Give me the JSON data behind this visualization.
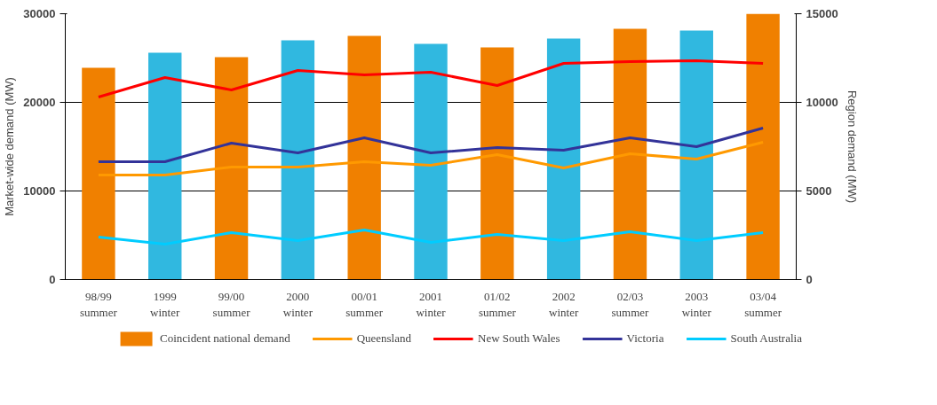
{
  "chart_data": {
    "type": "bar",
    "categories": [
      "98/99\nsummer",
      "1999\nwinter",
      "99/00\nsummer",
      "2000\nwinter",
      "00/01\nsummer",
      "2001\nwinter",
      "01/02\nsummer",
      "2002\nwinter",
      "02/03\nsummer",
      "2003\nwinter",
      "03/04\nsummer"
    ],
    "ylabel": "Market-wide demand (MW)",
    "y2label": "Region demand (MW)",
    "ylim": [
      0,
      30000
    ],
    "yticks": [
      0,
      10000,
      20000,
      30000
    ],
    "y2lim": [
      0,
      15000
    ],
    "y2ticks": [
      0,
      5000,
      10000,
      15000
    ],
    "grid": "y",
    "legend": "bottom",
    "series": [
      {
        "name": "Coincident national demand",
        "color": "#f08000",
        "colors": [
          "#f08000",
          "#30b8e0",
          "#f08000",
          "#30b8e0",
          "#f08000",
          "#30b8e0",
          "#f08000",
          "#30b8e0",
          "#f08000",
          "#30b8e0",
          "#f08000"
        ],
        "values": [
          23900,
          25600,
          25100,
          27000,
          27500,
          26600,
          26200,
          27200,
          28300,
          28100,
          30000
        ]
      },
      {
        "name": "Queensland",
        "type": "line",
        "axis": "y2",
        "color": "#ff9900",
        "values": [
          5900,
          5900,
          6350,
          6350,
          6650,
          6450,
          7050,
          6300,
          7100,
          6800,
          7750
        ]
      },
      {
        "name": "New South Wales",
        "type": "line",
        "axis": "y2",
        "color": "#ff0000",
        "values": [
          10300,
          11400,
          10700,
          11800,
          11550,
          11700,
          10950,
          12200,
          12300,
          12350,
          12200
        ]
      },
      {
        "name": "Victoria",
        "type": "line",
        "axis": "y2",
        "color": "#333399",
        "values": [
          6650,
          6650,
          7700,
          7150,
          8000,
          7150,
          7450,
          7300,
          8000,
          7500,
          8550
        ]
      },
      {
        "name": "South Australia",
        "type": "line",
        "axis": "y2",
        "color": "#00ccff",
        "values": [
          2400,
          2000,
          2650,
          2200,
          2800,
          2100,
          2550,
          2200,
          2700,
          2200,
          2650
        ]
      }
    ]
  }
}
